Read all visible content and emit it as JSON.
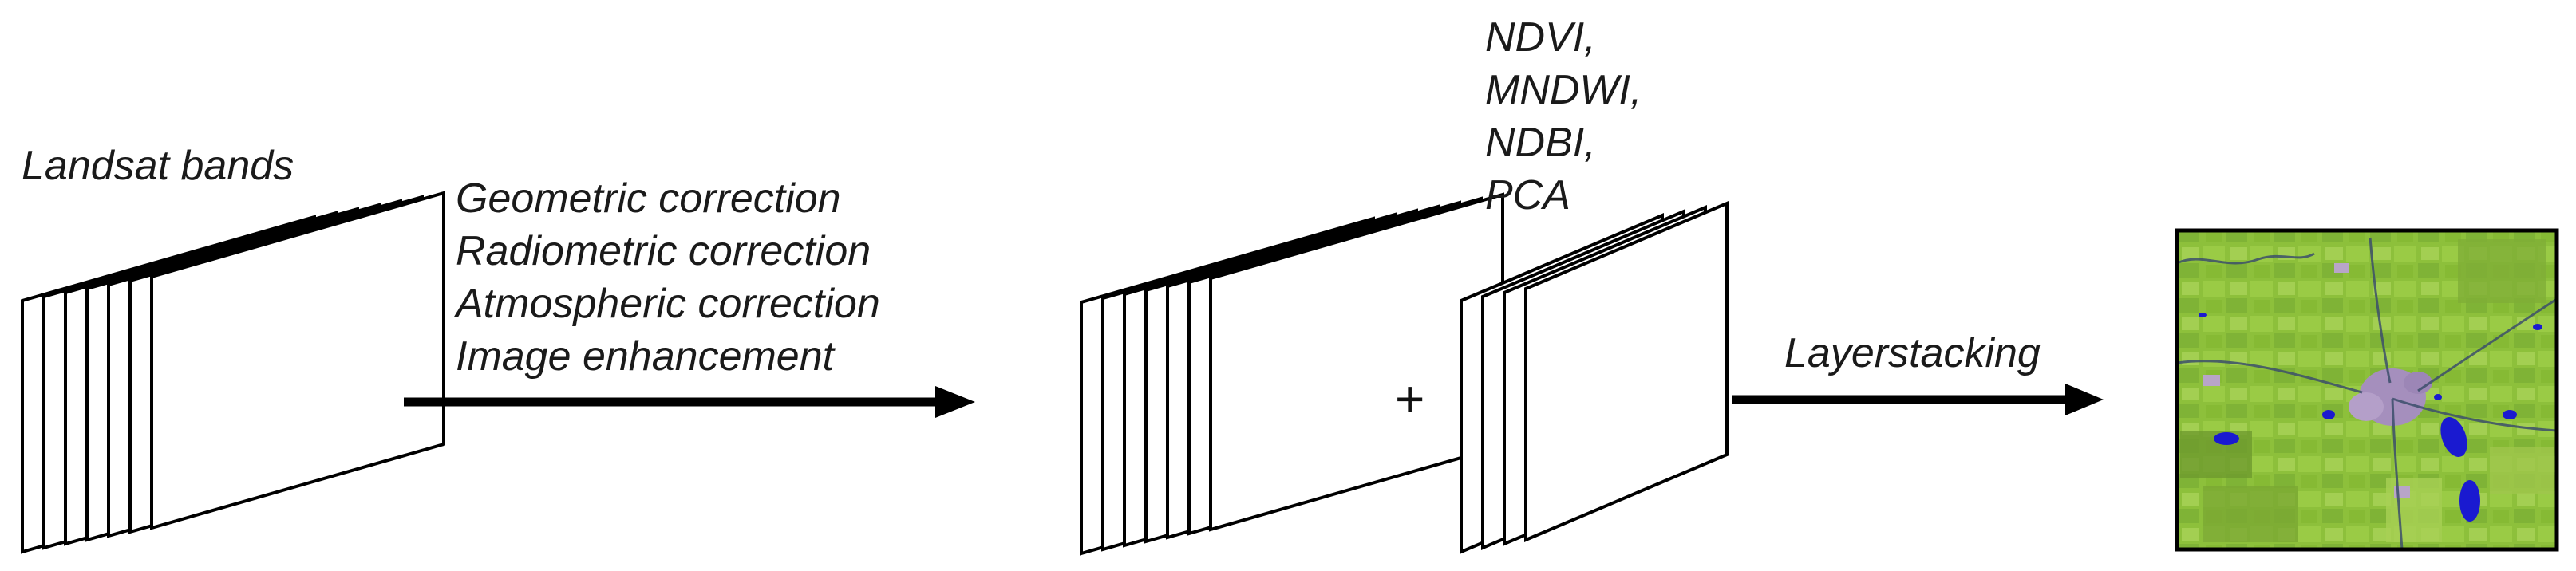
{
  "stacks": {
    "input_label": "Landsat bands",
    "indices_lines": [
      "NDVI,",
      "MNDWI,",
      "NDBI,",
      "PCA"
    ]
  },
  "steps": {
    "preprocessing_lines": [
      "Geometric correction",
      "Radiometric correction",
      "Atmospheric correction",
      "Image enhancement"
    ],
    "plus_symbol": "+",
    "stack_label": "Layerstacking"
  },
  "icons": {
    "band_stack": "stack-of-layers-icon",
    "arrow": "right-arrow-icon",
    "result": "satellite-image-thumbnail"
  },
  "colors": {
    "line": "#000000",
    "vegetation": "#8fc23a",
    "water": "#1a1ad0",
    "urban": "#a58fbd"
  }
}
